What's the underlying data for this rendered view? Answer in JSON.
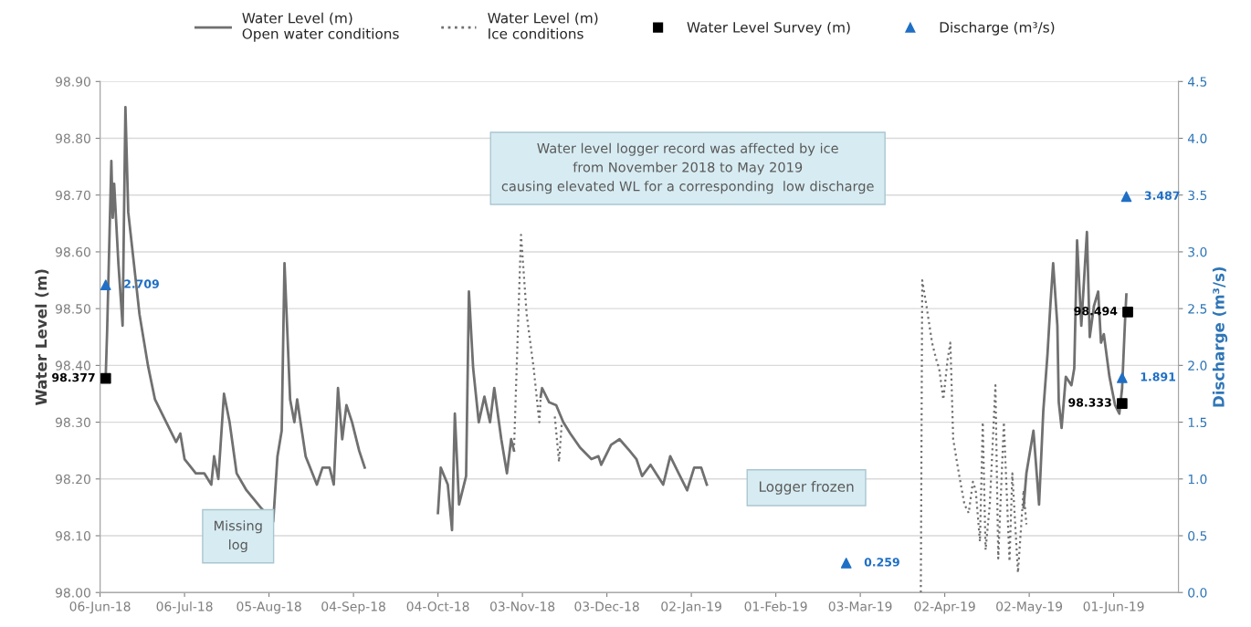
{
  "chart_data": {
    "type": "line",
    "ylabel": "Water Level (m)",
    "y2label": "Discharge (m³/s)",
    "xlim": [
      "2018-06-06",
      "2019-06-24"
    ],
    "xticks": [
      {
        "value": "2018-06-06",
        "label": "06-Jun-18"
      },
      {
        "value": "2018-07-06",
        "label": "06-Jul-18"
      },
      {
        "value": "2018-08-05",
        "label": "05-Aug-18"
      },
      {
        "value": "2018-09-04",
        "label": "04-Sep-18"
      },
      {
        "value": "2018-10-04",
        "label": "04-Oct-18"
      },
      {
        "value": "2018-11-03",
        "label": "03-Nov-18"
      },
      {
        "value": "2018-12-03",
        "label": "03-Dec-18"
      },
      {
        "value": "2019-01-02",
        "label": "02-Jan-19"
      },
      {
        "value": "2019-02-01",
        "label": "01-Feb-19"
      },
      {
        "value": "2019-03-03",
        "label": "03-Mar-19"
      },
      {
        "value": "2019-04-02",
        "label": "02-Apr-19"
      },
      {
        "value": "2019-05-02",
        "label": "02-May-19"
      },
      {
        "value": "2019-06-01",
        "label": "01-Jun-19"
      }
    ],
    "ylim": [
      98.0,
      98.9
    ],
    "yticks": [
      {
        "value": 98.0,
        "label": "98.00"
      },
      {
        "value": 98.1,
        "label": "98.10"
      },
      {
        "value": 98.2,
        "label": "98.20"
      },
      {
        "value": 98.3,
        "label": "98.30"
      },
      {
        "value": 98.4,
        "label": "98.40"
      },
      {
        "value": 98.5,
        "label": "98.50"
      },
      {
        "value": 98.6,
        "label": "98.60"
      },
      {
        "value": 98.7,
        "label": "98.70"
      },
      {
        "value": 98.8,
        "label": "98.80"
      },
      {
        "value": 98.9,
        "label": "98.90"
      }
    ],
    "y2lim": [
      0,
      4.5
    ],
    "y2ticks": [
      {
        "value": 0,
        "label": "0.0"
      },
      {
        "value": 0.5,
        "label": "0.5"
      },
      {
        "value": 1,
        "label": "1.0"
      },
      {
        "value": 1.5,
        "label": "1.5"
      },
      {
        "value": 2,
        "label": "2.0"
      },
      {
        "value": 2.5,
        "label": "2.5"
      },
      {
        "value": 3,
        "label": "3.0"
      },
      {
        "value": 3.5,
        "label": "3.5"
      },
      {
        "value": 4,
        "label": "4.0"
      },
      {
        "value": 4.5,
        "label": "4.5"
      }
    ],
    "grid": "y",
    "legend": "top",
    "series": [
      {
        "name": "Water Level (m)\nOpen water conditions",
        "line_style": "solid",
        "color": "#707070",
        "x": [
          "2018-06-08",
          "2018-06-08T12:00",
          "2018-06-10",
          "2018-06-10T12:00",
          "2018-06-11",
          "2018-06-12T12:00",
          "2018-06-14",
          "2018-06-15",
          "2018-06-16",
          "2018-06-18",
          "2018-06-20",
          "2018-06-23",
          "2018-06-25T12:00",
          "2018-06-29T12:00",
          "2018-07-03",
          "2018-07-04T12:00",
          "2018-07-06",
          "2018-07-10",
          "2018-07-13",
          "2018-07-15T12:00",
          "2018-07-16T12:00",
          "2018-07-18",
          "2018-07-20",
          "2018-07-22",
          "2018-07-24T12:00",
          "2018-07-28",
          "2018-08-02",
          "2018-08-06T12:00",
          "2018-08-08",
          "2018-08-09T12:00",
          "2018-08-10T12:00",
          "2018-08-12T12:00",
          "2018-08-14",
          "2018-08-15",
          "2018-08-18",
          "2018-08-22",
          "2018-08-24",
          "2018-08-26T12:00",
          "2018-08-28",
          "2018-08-29T12:00",
          "2018-08-31",
          "2018-09-01T12:00",
          "2018-09-03T12:00",
          "2018-09-06",
          "2018-09-08",
          "2018-09-20",
          "2018-10-04",
          "2018-10-05",
          "2018-10-07T12:00",
          "2018-10-09",
          "2018-10-10",
          "2018-10-11T12:00",
          "2018-10-14",
          "2018-10-15",
          "2018-10-16T12:00",
          "2018-10-18T12:00",
          "2018-10-20T12:00",
          "2018-10-22T12:00",
          "2018-10-24",
          "2018-10-26T12:00",
          "2018-10-28T12:00",
          "2018-10-30",
          "2018-10-31",
          "2018-11-05",
          "2018-11-09T12:00",
          "2018-11-10",
          "2018-11-12T12:00",
          "2018-11-15",
          "2018-11-17T12:00",
          "2018-11-20",
          "2018-11-23T12:00",
          "2018-11-27T12:00",
          "2018-11-30",
          "2018-12-01",
          "2018-12-04T12:00",
          "2018-12-07T12:00",
          "2018-12-11",
          "2018-12-13T12:00",
          "2018-12-15T12:00",
          "2018-12-18T12:00",
          "2018-12-23",
          "2018-12-25T12:00",
          "2018-12-28T12:00",
          "2018-12-31T12:00",
          "2019-01-03",
          "2019-01-05T12:00",
          "2019-01-07T12:00",
          "2019-03-01",
          "2019-04-30",
          "2019-05-01",
          "2019-05-03T12:00",
          "2019-05-05T12:00",
          "2019-05-07",
          "2019-05-08T12:00",
          "2019-05-09T12:00",
          "2019-05-10T12:00",
          "2019-05-12",
          "2019-05-12T12:00",
          "2019-05-13T12:00",
          "2019-05-15",
          "2019-05-17",
          "2019-05-18",
          "2019-05-19",
          "2019-05-20T12:00",
          "2019-05-22T12:00",
          "2019-05-23T12:00",
          "2019-05-25",
          "2019-05-26T12:00",
          "2019-05-27T12:00",
          "2019-05-28T12:00",
          "2019-05-30T12:00",
          "2019-06-01T12:00",
          "2019-06-03",
          "2019-06-04",
          "2019-06-05",
          "2019-06-05T12:00"
        ],
        "values": [
          98.38,
          98.46,
          98.76,
          98.66,
          98.72,
          98.58,
          98.47,
          98.855,
          98.67,
          98.58,
          98.49,
          98.4,
          98.34,
          98.3,
          98.265,
          98.28,
          98.235,
          98.21,
          98.21,
          98.19,
          98.24,
          98.2,
          98.35,
          98.3,
          98.21,
          98.18,
          98.15,
          98.125,
          98.24,
          98.285,
          98.58,
          98.34,
          98.3,
          98.34,
          98.24,
          98.19,
          98.22,
          98.22,
          98.19,
          98.36,
          98.27,
          98.33,
          98.3,
          98.25,
          98.22,
          null,
          98.14,
          98.22,
          98.19,
          98.11,
          98.315,
          98.155,
          98.205,
          98.53,
          98.395,
          98.3,
          98.345,
          98.3,
          98.36,
          98.27,
          98.21,
          98.27,
          98.25,
          null,
          98.345,
          98.36,
          98.335,
          98.33,
          98.3,
          98.28,
          98.255,
          98.235,
          98.24,
          98.225,
          98.26,
          98.27,
          98.25,
          98.235,
          98.205,
          98.225,
          98.19,
          98.24,
          98.21,
          98.18,
          98.22,
          98.22,
          98.19,
          null,
          98.15,
          98.21,
          98.285,
          98.155,
          98.32,
          98.42,
          98.505,
          98.58,
          98.47,
          98.335,
          98.29,
          98.38,
          98.365,
          98.395,
          98.62,
          98.47,
          98.635,
          98.45,
          98.505,
          98.53,
          98.44,
          98.455,
          98.38,
          98.33,
          98.315,
          98.36,
          98.475,
          98.525
        ]
      },
      {
        "name": "Water Level (m)\nIce conditions",
        "line_style": "dotted",
        "color": "#707070",
        "x": [
          "2018-10-31",
          "2018-11-02T12:00",
          "2018-11-04T12:00",
          "2018-11-07",
          "2018-11-09",
          "2018-11-09T12:00",
          "2018-11-12",
          "2018-11-14T12:00",
          "2018-11-16",
          "2018-11-17",
          "2019-03-01",
          "2019-03-24T12:00",
          "2019-03-25",
          "2019-03-26T12:00",
          "2019-03-28T12:00",
          "2019-03-30",
          "2019-03-31",
          "2019-04-01T12:00",
          "2019-04-03",
          "2019-04-04",
          "2019-04-05",
          "2019-04-07",
          "2019-04-09",
          "2019-04-10T12:00",
          "2019-04-12",
          "2019-04-13",
          "2019-04-14T12:00",
          "2019-04-15T12:00",
          "2019-04-16T12:00",
          "2019-04-18",
          "2019-04-20",
          "2019-04-21",
          "2019-04-23",
          "2019-04-25",
          "2019-04-26",
          "2019-04-28",
          "2019-04-30",
          "2019-05-01"
        ],
        "values": [
          98.25,
          98.63,
          98.49,
          98.395,
          98.3,
          98.345,
          null,
          98.31,
          98.23,
          98.3,
          null,
          98.0,
          98.55,
          98.505,
          98.44,
          98.41,
          98.395,
          98.34,
          98.41,
          98.44,
          98.27,
          98.21,
          98.155,
          98.14,
          98.195,
          98.18,
          98.09,
          98.3,
          98.075,
          98.155,
          98.365,
          98.06,
          98.3,
          98.055,
          98.21,
          98.035,
          98.18,
          98.12
        ]
      },
      {
        "name": "Water Level Survey (m)",
        "type": "scatter",
        "marker": "square",
        "color": "#000000",
        "x": [
          "2018-06-08",
          "2019-06-04",
          "2019-06-06"
        ],
        "values": [
          98.377,
          98.333,
          98.494
        ],
        "value_labels": [
          "98.377",
          "98.333",
          "98.494"
        ]
      },
      {
        "name": "Discharge (m³/s)",
        "type": "scatter",
        "marker": "triangle",
        "axis": "y2",
        "color": "#1f6fc5",
        "x": [
          "2018-06-08",
          "2019-02-26",
          "2019-06-04",
          "2019-06-05T12:00"
        ],
        "values": [
          2.709,
          0.259,
          1.891,
          3.487
        ],
        "value_labels": [
          "2.709",
          "0.259",
          "1.891",
          "3.487"
        ]
      }
    ],
    "annotations": [
      "Water level logger record was affected by ice\nfrom November 2018 to May 2019\ncausing elevated WL for a corresponding  low discharge",
      "Missing\nlog",
      "Logger frozen"
    ]
  }
}
